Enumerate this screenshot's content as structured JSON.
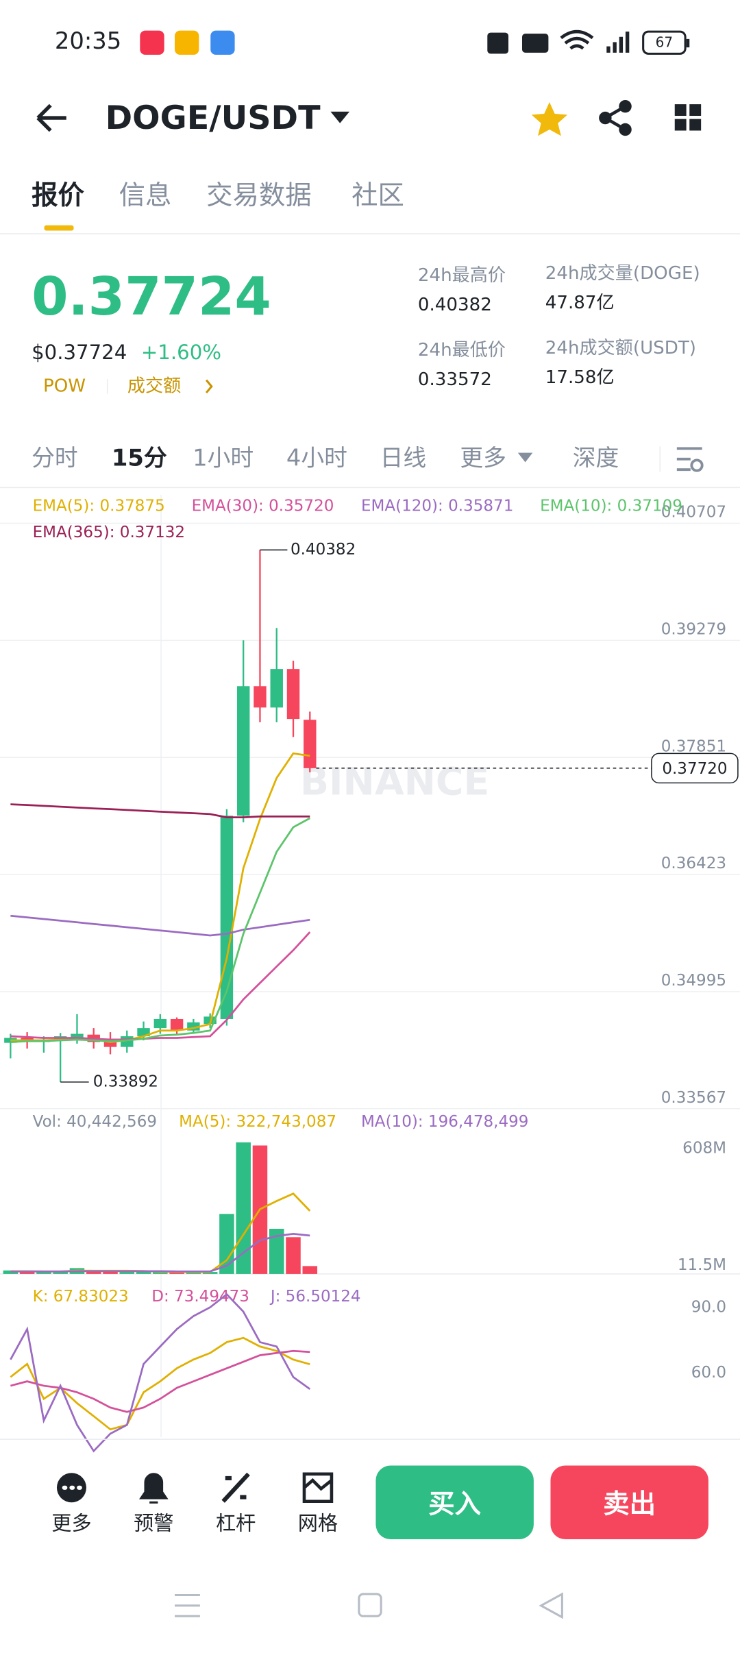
{
  "status_bar": {
    "time": "20:35",
    "battery": "67"
  },
  "header": {
    "pair": "DOGE/USDT"
  },
  "tabs": [
    "报价",
    "信息",
    "交易数据",
    "社区"
  ],
  "ticker": {
    "price": "0.37724",
    "price_usd": "$0.37724",
    "change": "+1.60%",
    "tag": "POW",
    "volume_link": "成交额",
    "stats": [
      {
        "label": "24h最高价",
        "value": "0.40382"
      },
      {
        "label": "24h成交量(DOGE)",
        "value": "47.87亿"
      },
      {
        "label": "24h最低价",
        "value": "0.33572"
      },
      {
        "label": "24h成交额(USDT)",
        "value": "17.58亿"
      }
    ]
  },
  "intervals": [
    "分时",
    "15分",
    "1小时",
    "4小时",
    "日线",
    "更多",
    "深度"
  ],
  "chart_data": [
    {
      "type": "candlestick",
      "watermark": "BINANCE",
      "up_color": "#2ebd85",
      "down_color": "#f6465d",
      "open": [
        0.3437,
        0.3443,
        0.3438,
        0.3441,
        0.344,
        0.3447,
        0.344,
        0.3432,
        0.3445,
        0.3455,
        0.3466,
        0.3452,
        0.346,
        0.3466,
        0.3714,
        0.3872,
        0.3846,
        0.3893,
        0.3831
      ],
      "high": [
        0.3448,
        0.345,
        0.3445,
        0.3449,
        0.3472,
        0.3455,
        0.345,
        0.3452,
        0.3463,
        0.3472,
        0.3468,
        0.3466,
        0.3473,
        0.3722,
        0.3928,
        0.40382,
        0.3943,
        0.3903,
        0.3841
      ],
      "low": [
        0.3418,
        0.343,
        0.3425,
        0.33892,
        0.3436,
        0.343,
        0.3423,
        0.3425,
        0.344,
        0.3448,
        0.3448,
        0.3448,
        0.3455,
        0.3458,
        0.3706,
        0.3828,
        0.3828,
        0.381,
        0.3767
      ],
      "close": [
        0.3443,
        0.3438,
        0.3441,
        0.3445,
        0.3448,
        0.3438,
        0.3432,
        0.3445,
        0.3455,
        0.3466,
        0.3452,
        0.3462,
        0.3469,
        0.3714,
        0.3872,
        0.3846,
        0.3893,
        0.3832,
        0.3772
      ],
      "series": [
        {
          "name": "EMA(5): 0.37875",
          "color": "#e0b000",
          "values": [
            0.344,
            0.344,
            0.344,
            0.3441,
            0.3443,
            0.3441,
            0.3438,
            0.344,
            0.3445,
            0.3452,
            0.3452,
            0.3455,
            0.346,
            0.354,
            0.365,
            0.371,
            0.376,
            0.379,
            0.3787
          ]
        },
        {
          "name": "EMA(30): 0.35720",
          "color": "#d4509a",
          "values": [
            0.3445,
            0.3444,
            0.3443,
            0.3443,
            0.3443,
            0.3442,
            0.3441,
            0.3441,
            0.3442,
            0.3443,
            0.3443,
            0.3444,
            0.3445,
            0.3465,
            0.349,
            0.351,
            0.353,
            0.355,
            0.3572
          ]
        },
        {
          "name": "EMA(120): 0.35871",
          "color": "#9b6bc2",
          "values": [
            0.3592,
            0.359,
            0.3588,
            0.3586,
            0.3584,
            0.3582,
            0.358,
            0.3578,
            0.3576,
            0.3574,
            0.3572,
            0.357,
            0.3568,
            0.357,
            0.3575,
            0.3578,
            0.3581,
            0.3584,
            0.3587
          ]
        },
        {
          "name": "EMA(10): 0.37109",
          "color": "#5cc46b",
          "values": [
            0.3438,
            0.3439,
            0.3439,
            0.344,
            0.3441,
            0.344,
            0.3439,
            0.344,
            0.3442,
            0.3446,
            0.3447,
            0.3449,
            0.3452,
            0.35,
            0.357,
            0.362,
            0.367,
            0.37,
            0.3711
          ]
        },
        {
          "name": "EMA(365): 0.37132",
          "color": "#9b2055",
          "values": [
            0.3728,
            0.3727,
            0.3726,
            0.3725,
            0.3724,
            0.3723,
            0.3722,
            0.3721,
            0.372,
            0.3719,
            0.3718,
            0.3717,
            0.3716,
            0.3712,
            0.3712,
            0.3713,
            0.3713,
            0.3713,
            0.3713
          ]
        }
      ],
      "high_label": 0.40382,
      "low_label": 0.33892,
      "last_price": {
        "value": 0.3772,
        "label": "0.37720"
      },
      "ylim": [
        0.33567,
        0.40707
      ],
      "yticks": [
        0.40707,
        0.39279,
        0.37851,
        0.36423,
        0.34995,
        0.33567
      ],
      "grid": true
    },
    {
      "type": "bar",
      "name": "Vol: 40,442,569",
      "values": [
        18000000,
        12000000,
        9000000,
        15000000,
        30000000,
        14000000,
        12000000,
        10000000,
        11000000,
        13000000,
        9000000,
        8000000,
        10000000,
        307000000,
        673000000,
        657000000,
        231000000,
        188000000,
        40442569
      ],
      "series": [
        {
          "name": "MA(5): 322,743,087",
          "color": "#e0b000",
          "values": [
            14000000,
            14000000,
            13000000,
            13000000,
            17000000,
            16000000,
            16000000,
            16000000,
            15000000,
            12000000,
            11000000,
            10000000,
            10000000,
            70000000,
            201000000,
            331000000,
            373000000,
            411000000,
            322743087
          ]
        },
        {
          "name": "MA(10): 196,478,499",
          "color": "#9b6bc2",
          "values": [
            13000000,
            13000000,
            13000000,
            13000000,
            14000000,
            14000000,
            14000000,
            14000000,
            14000000,
            14000000,
            13000000,
            13000000,
            13000000,
            42000000,
            108000000,
            172000000,
            194000000,
            205000000,
            196478499
          ]
        }
      ],
      "ylim": [
        0,
        700000000
      ],
      "yticks": [
        {
          "value": 608000000,
          "label": "608M"
        },
        {
          "value": 11500000,
          "label": "11.5M"
        }
      ]
    },
    {
      "type": "line",
      "series": [
        {
          "name": "K: 67.83023",
          "color": "#e0b000",
          "values": [
            62,
            68,
            52,
            57,
            50,
            44,
            38,
            40,
            55,
            60,
            66,
            70,
            73,
            78,
            80,
            76,
            74,
            70,
            67.83023
          ]
        },
        {
          "name": "D: 73.49473",
          "color": "#d4509a",
          "values": [
            58,
            60,
            58,
            57,
            55,
            52,
            48,
            46,
            48,
            52,
            57,
            60,
            63,
            66,
            69,
            72,
            73,
            74,
            73.49473
          ]
        },
        {
          "name": "J: 56.50124",
          "color": "#9b6bc2",
          "values": [
            70,
            84,
            42,
            58,
            40,
            28,
            36,
            40,
            68,
            76,
            84,
            90,
            94,
            100,
            92,
            78,
            76,
            62,
            56.50124
          ]
        }
      ],
      "ylim": [
        34.4,
        106.9
      ],
      "yticks": [
        {
          "value": 90,
          "label": "90.0"
        },
        {
          "value": 60,
          "label": "60.0"
        }
      ]
    }
  ],
  "bottom_bar": {
    "actions": [
      "更多",
      "预警",
      "杠杆",
      "网格"
    ],
    "buy": "买入",
    "sell": "卖出"
  }
}
